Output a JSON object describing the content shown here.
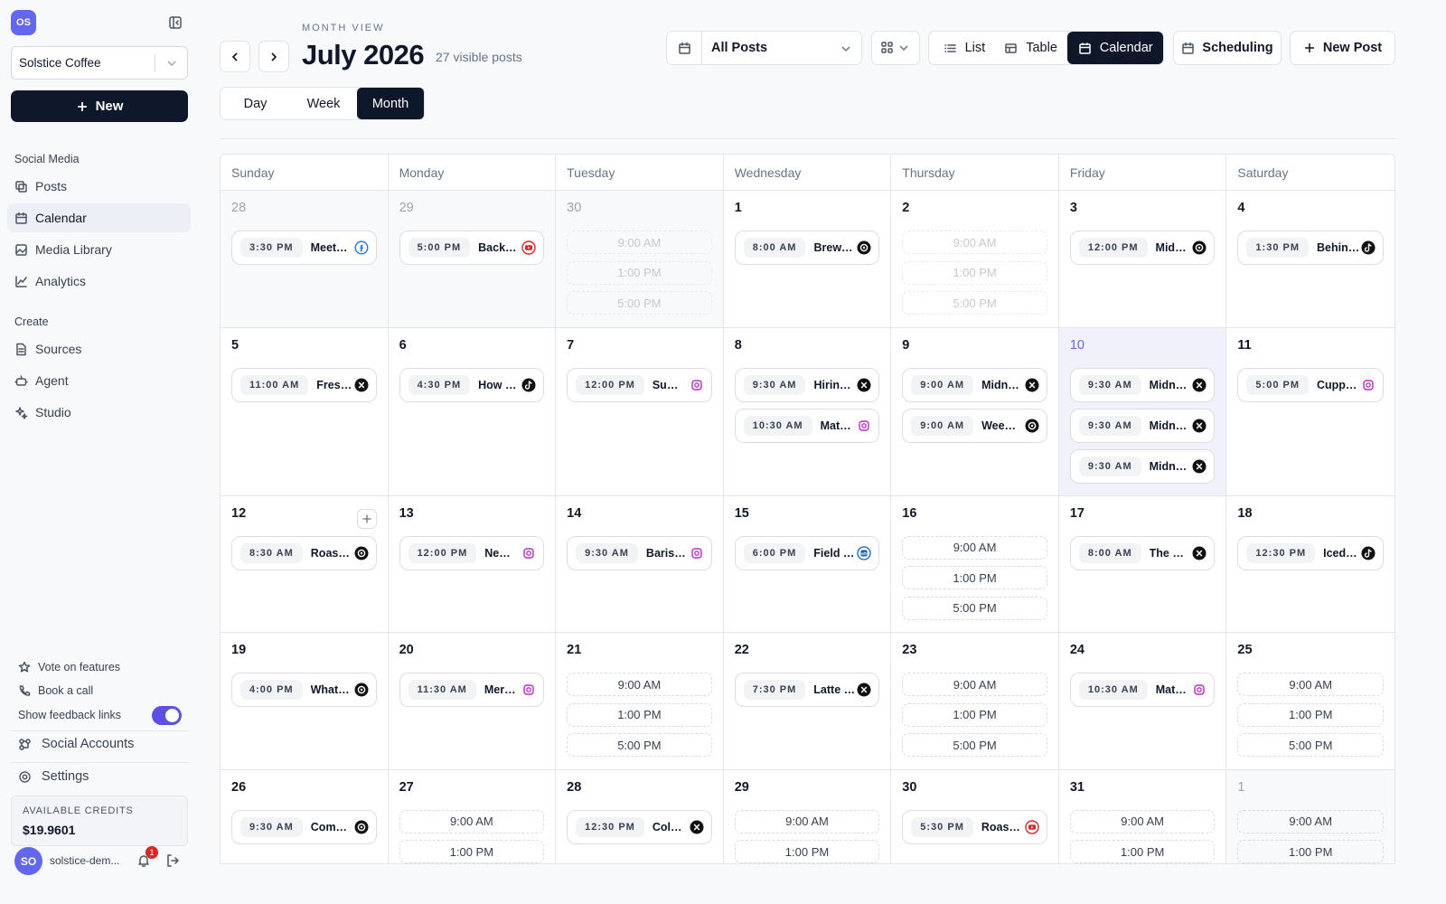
{
  "sidebar": {
    "workspace_initials": "OS",
    "workspace": "Solstice Coffee",
    "new_button": "New",
    "sections": [
      {
        "title": "Social Media",
        "items": [
          "Posts",
          "Calendar",
          "Media Library",
          "Analytics"
        ]
      },
      {
        "title": "Create",
        "items": [
          "Sources",
          "Agent",
          "Studio"
        ]
      }
    ],
    "links": [
      "Vote on features",
      "Book a call"
    ],
    "feedback_toggle": "Show feedback links",
    "social_accounts": "Social Accounts",
    "settings": "Settings",
    "credits_label": "AVAILABLE CREDITS",
    "credits": "$19.9601",
    "user_initials": "SO",
    "user": "solstice-dem...",
    "notifications": "1"
  },
  "header": {
    "eyebrow": "MONTH VIEW",
    "title": "July 2026",
    "subtitle": "27 visible posts",
    "filter": "All Posts",
    "views": [
      "List",
      "Table",
      "Calendar"
    ],
    "scheduling": "Scheduling",
    "new_post": "New Post",
    "ranges": [
      "Day",
      "Week",
      "Month"
    ]
  },
  "calendar": {
    "weekdays": [
      "Sunday",
      "Monday",
      "Tuesday",
      "Wednesday",
      "Thursday",
      "Friday",
      "Saturday"
    ],
    "weeks": [
      [
        {
          "day": "28",
          "outside": true,
          "posts": [
            {
              "time": "3:30 PM",
              "title": "Meet…",
              "platform": "facebook"
            }
          ]
        },
        {
          "day": "29",
          "outside": true,
          "posts": [
            {
              "time": "5:00 PM",
              "title": "Back…",
              "platform": "youtube"
            }
          ]
        },
        {
          "day": "30",
          "outside": true,
          "past": true,
          "slots": [
            "9:00 AM",
            "1:00 PM",
            "5:00 PM"
          ]
        },
        {
          "day": "1",
          "posts": [
            {
              "time": "8:00 AM",
              "title": "Brew…",
              "platform": "threads"
            }
          ]
        },
        {
          "day": "2",
          "past": true,
          "slots": [
            "9:00 AM",
            "1:00 PM",
            "5:00 PM"
          ]
        },
        {
          "day": "3",
          "posts": [
            {
              "time": "12:00 PM",
              "title": "Mid…",
              "platform": "threads"
            }
          ]
        },
        {
          "day": "4",
          "posts": [
            {
              "time": "1:30 PM",
              "title": "Behin…",
              "platform": "tiktok"
            }
          ]
        }
      ],
      [
        {
          "day": "5",
          "posts": [
            {
              "time": "11:00 AM",
              "title": "Fres…",
              "platform": "x"
            }
          ]
        },
        {
          "day": "6",
          "posts": [
            {
              "time": "4:30 PM",
              "title": "How …",
              "platform": "tiktok"
            }
          ]
        },
        {
          "day": "7",
          "posts": [
            {
              "time": "12:00 PM",
              "title": "Su…",
              "platform": "instagram"
            }
          ]
        },
        {
          "day": "8",
          "posts": [
            {
              "time": "9:30 AM",
              "title": "Hirin…",
              "platform": "x"
            },
            {
              "time": "10:30 AM",
              "title": "Mat…",
              "platform": "instagram"
            }
          ]
        },
        {
          "day": "9",
          "posts": [
            {
              "time": "9:00 AM",
              "title": "Midn…",
              "platform": "x"
            },
            {
              "time": "9:00 AM",
              "title": "Wee…",
              "platform": "threads"
            }
          ]
        },
        {
          "day": "10",
          "today": true,
          "posts": [
            {
              "time": "9:30 AM",
              "title": "Midn…",
              "platform": "x"
            },
            {
              "time": "9:30 AM",
              "title": "Midn…",
              "platform": "x"
            },
            {
              "time": "9:30 AM",
              "title": "Midn…",
              "platform": "x"
            }
          ]
        },
        {
          "day": "11",
          "posts": [
            {
              "time": "5:00 PM",
              "title": "Cupp…",
              "platform": "instagram"
            }
          ]
        }
      ],
      [
        {
          "day": "12",
          "add_button": true,
          "posts": [
            {
              "time": "8:30 AM",
              "title": "Roas…",
              "platform": "threads"
            }
          ]
        },
        {
          "day": "13",
          "posts": [
            {
              "time": "12:00 PM",
              "title": "Ne…",
              "platform": "instagram"
            }
          ]
        },
        {
          "day": "14",
          "posts": [
            {
              "time": "9:30 AM",
              "title": "Baris…",
              "platform": "instagram"
            }
          ]
        },
        {
          "day": "15",
          "posts": [
            {
              "time": "6:00 PM",
              "title": "Field …",
              "platform": "linkedin"
            }
          ]
        },
        {
          "day": "16",
          "slots": [
            "9:00 AM",
            "1:00 PM",
            "5:00 PM"
          ]
        },
        {
          "day": "17",
          "posts": [
            {
              "time": "8:00 AM",
              "title": "The …",
              "platform": "x"
            }
          ]
        },
        {
          "day": "18",
          "posts": [
            {
              "time": "12:30 PM",
              "title": "Iced…",
              "platform": "tiktok"
            }
          ]
        }
      ],
      [
        {
          "day": "19",
          "posts": [
            {
              "time": "4:00 PM",
              "title": "What…",
              "platform": "threads"
            }
          ]
        },
        {
          "day": "20",
          "posts": [
            {
              "time": "11:30 AM",
              "title": "Mer…",
              "platform": "instagram"
            }
          ]
        },
        {
          "day": "21",
          "slots": [
            "9:00 AM",
            "1:00 PM",
            "5:00 PM"
          ]
        },
        {
          "day": "22",
          "posts": [
            {
              "time": "7:30 PM",
              "title": "Latte …",
              "platform": "x"
            }
          ]
        },
        {
          "day": "23",
          "slots": [
            "9:00 AM",
            "1:00 PM",
            "5:00 PM"
          ]
        },
        {
          "day": "24",
          "posts": [
            {
              "time": "10:30 AM",
              "title": "Mat…",
              "platform": "instagram"
            }
          ]
        },
        {
          "day": "25",
          "slots": [
            "9:00 AM",
            "1:00 PM",
            "5:00 PM"
          ]
        }
      ],
      [
        {
          "day": "26",
          "posts": [
            {
              "time": "9:30 AM",
              "title": "Com…",
              "platform": "threads"
            }
          ]
        },
        {
          "day": "27",
          "slots": [
            "9:00 AM",
            "1:00 PM"
          ]
        },
        {
          "day": "28",
          "posts": [
            {
              "time": "12:30 PM",
              "title": "Col…",
              "platform": "x"
            }
          ]
        },
        {
          "day": "29",
          "slots": [
            "9:00 AM",
            "1:00 PM"
          ]
        },
        {
          "day": "30",
          "posts": [
            {
              "time": "5:30 PM",
              "title": "Roas…",
              "platform": "youtube"
            }
          ]
        },
        {
          "day": "31",
          "slots": [
            "9:00 AM",
            "1:00 PM"
          ]
        },
        {
          "day": "1",
          "outside": true,
          "slots": [
            "9:00 AM",
            "1:00 PM"
          ]
        }
      ]
    ]
  }
}
